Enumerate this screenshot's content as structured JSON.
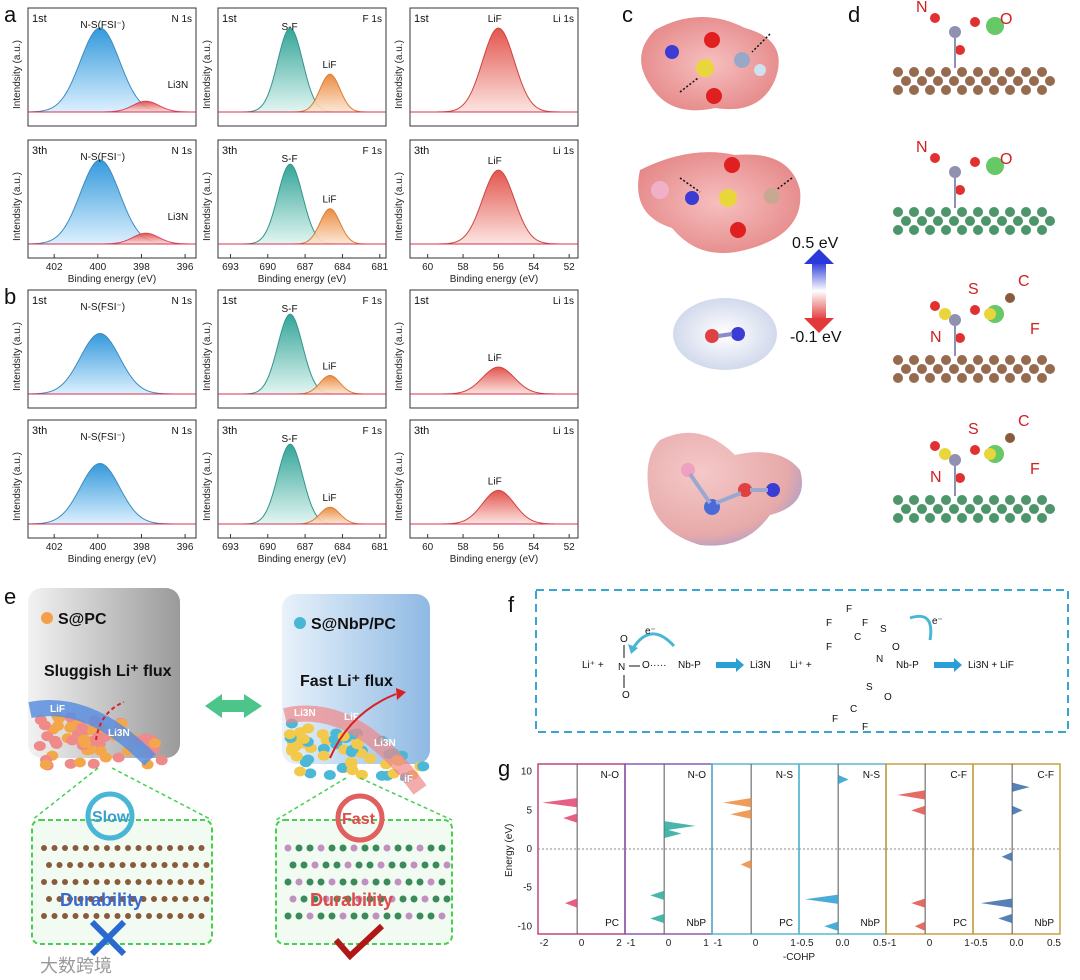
{
  "panel_labels": {
    "a": "a",
    "b": "b",
    "c": "c",
    "d": "d",
    "e": "e",
    "f": "f",
    "g": "g"
  },
  "xps": {
    "ylabel": "Intendsity (a.u.)",
    "xlabel": "Binding energy (eV)",
    "colors": {
      "N": "#3a9fd6",
      "F": "#2aa89a",
      "F2": "#ef8a3c",
      "Li": "#e0524a",
      "red": "#d8304f"
    },
    "columns": [
      {
        "core": "N 1s",
        "ticks": [
          "402",
          "400",
          "398",
          "396"
        ],
        "xmin": 395.5,
        "xmax": 403.2
      },
      {
        "core": "F 1s",
        "ticks": [
          "693",
          "690",
          "687",
          "684",
          "681"
        ],
        "xmin": 680.5,
        "xmax": 694
      },
      {
        "core": "Li 1s",
        "ticks": [
          "60",
          "58",
          "56",
          "54",
          "52"
        ],
        "xmin": 51.5,
        "xmax": 61
      }
    ],
    "rows": [
      {
        "cycle": "1st",
        "N": {
          "main": "N-S(FSI⁻)",
          "minor": "Li3N",
          "sup_main": "−",
          "ratio": 0.08
        },
        "F": {
          "a": "S-F",
          "b": "LiF"
        },
        "Li": {
          "a": "LiF"
        }
      },
      {
        "cycle": "3th",
        "N": {
          "main": "N-S(FSI⁻)",
          "minor": "Li3N",
          "ratio": 0.08
        },
        "F": {
          "a": "S-F",
          "b": "LiF"
        },
        "Li": {
          "a": "LiF"
        }
      },
      {
        "cycle": "1st",
        "N": {
          "main": "N-S(FSI⁻)"
        },
        "F": {
          "a": "S-F",
          "b": "LiF"
        },
        "Li": {
          "a": "LiF"
        }
      },
      {
        "cycle": "3th",
        "N": {
          "main": "N-S(FSI⁻)"
        },
        "F": {
          "a": "S-F",
          "b": "LiF"
        },
        "Li": {
          "a": "LiF"
        }
      }
    ]
  },
  "esp": {
    "top": "0.5 eV",
    "bottom": "-0.1 eV"
  },
  "d_labels": {
    "N": "N",
    "O": "O",
    "S": "S",
    "C": "C",
    "F": "F"
  },
  "e": {
    "left_title": "S@PC",
    "right_title": "S@NbP/PC",
    "left_flux": "Sluggish Li⁺ flux",
    "right_flux": "Fast Li⁺ flux",
    "left_speed": "Slow",
    "right_speed": "Fast",
    "durability": "Durability",
    "left_layers": [
      "LiF",
      "Li3N"
    ],
    "right_layers": [
      "Li3N",
      "LiF",
      "Li3N",
      "LiF"
    ]
  },
  "f": {
    "eq1": {
      "li": "Li⁺ +",
      "nb": "Nb-P",
      "product": "Li3N",
      "e": "e⁻"
    },
    "eq2": {
      "li": "Li⁺ +",
      "nb": "Nb-P",
      "product": "Li3N + LiF",
      "e": "e⁻"
    }
  },
  "g": {
    "ylabel": "Energy (eV)",
    "xlabel": "-COHP",
    "yticks": [
      "10",
      "5",
      "0",
      "-5",
      "-10"
    ],
    "panels": [
      {
        "bond": "N-O",
        "sample": "PC",
        "ticks": [
          "-2",
          "0",
          "2"
        ],
        "color": "#e2436f",
        "border": "#c0457e"
      },
      {
        "bond": "N-O",
        "sample": "NbP",
        "ticks": [
          "-1",
          "0",
          "1"
        ],
        "color": "#2aa89a",
        "border": "#8a5bb0"
      },
      {
        "bond": "N-S",
        "sample": "PC",
        "ticks": [
          "-1",
          "0",
          "1"
        ],
        "color": "#ef8a3c",
        "border": "#58b8d0"
      },
      {
        "bond": "N-S",
        "sample": "NbP",
        "ticks": [
          "-0.5",
          "0.0",
          "0.5"
        ],
        "color": "#2a9fd0",
        "border": "#58b8d0"
      },
      {
        "bond": "C-F",
        "sample": "PC",
        "ticks": [
          "-1",
          "0",
          "1"
        ],
        "color": "#e0524a",
        "border": "#c8a040"
      },
      {
        "bond": "C-F",
        "sample": "NbP",
        "ticks": [
          "-0.5",
          "0.0",
          "0.5"
        ],
        "color": "#3a6aa8",
        "border": "#c8a040"
      }
    ]
  },
  "watermark": "大数跨境"
}
